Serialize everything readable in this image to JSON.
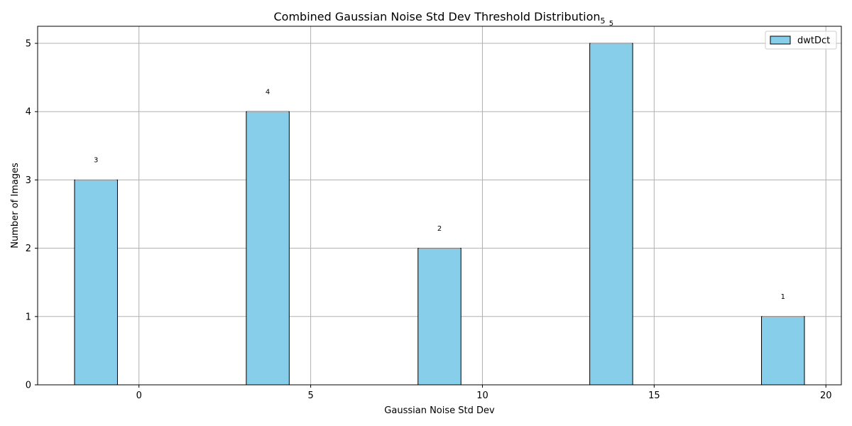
{
  "chart_data": {
    "type": "bar",
    "title": "Combined Gaussian Noise Std Dev Threshold Distribution",
    "title_subscript": "5",
    "xlabel": "Gaussian Noise Std Dev",
    "ylabel": "Number of Images",
    "xlim": [
      -2.95,
      20.45
    ],
    "ylim": [
      0,
      5.25
    ],
    "xticks": [
      0,
      5,
      10,
      15,
      20
    ],
    "yticks": [
      0,
      1,
      2,
      3,
      4,
      5
    ],
    "grid": true,
    "legend_position": "top-right",
    "bar_width": 1.25,
    "series": [
      {
        "name": "dwtDct",
        "color": "#87CEEB",
        "edge_color": "#000000",
        "x": [
          -1.25,
          3.75,
          8.75,
          13.75,
          18.75
        ],
        "values": [
          3,
          4,
          2,
          5,
          1
        ],
        "labels": [
          "3",
          "4",
          "2",
          "5",
          "1"
        ]
      }
    ]
  }
}
